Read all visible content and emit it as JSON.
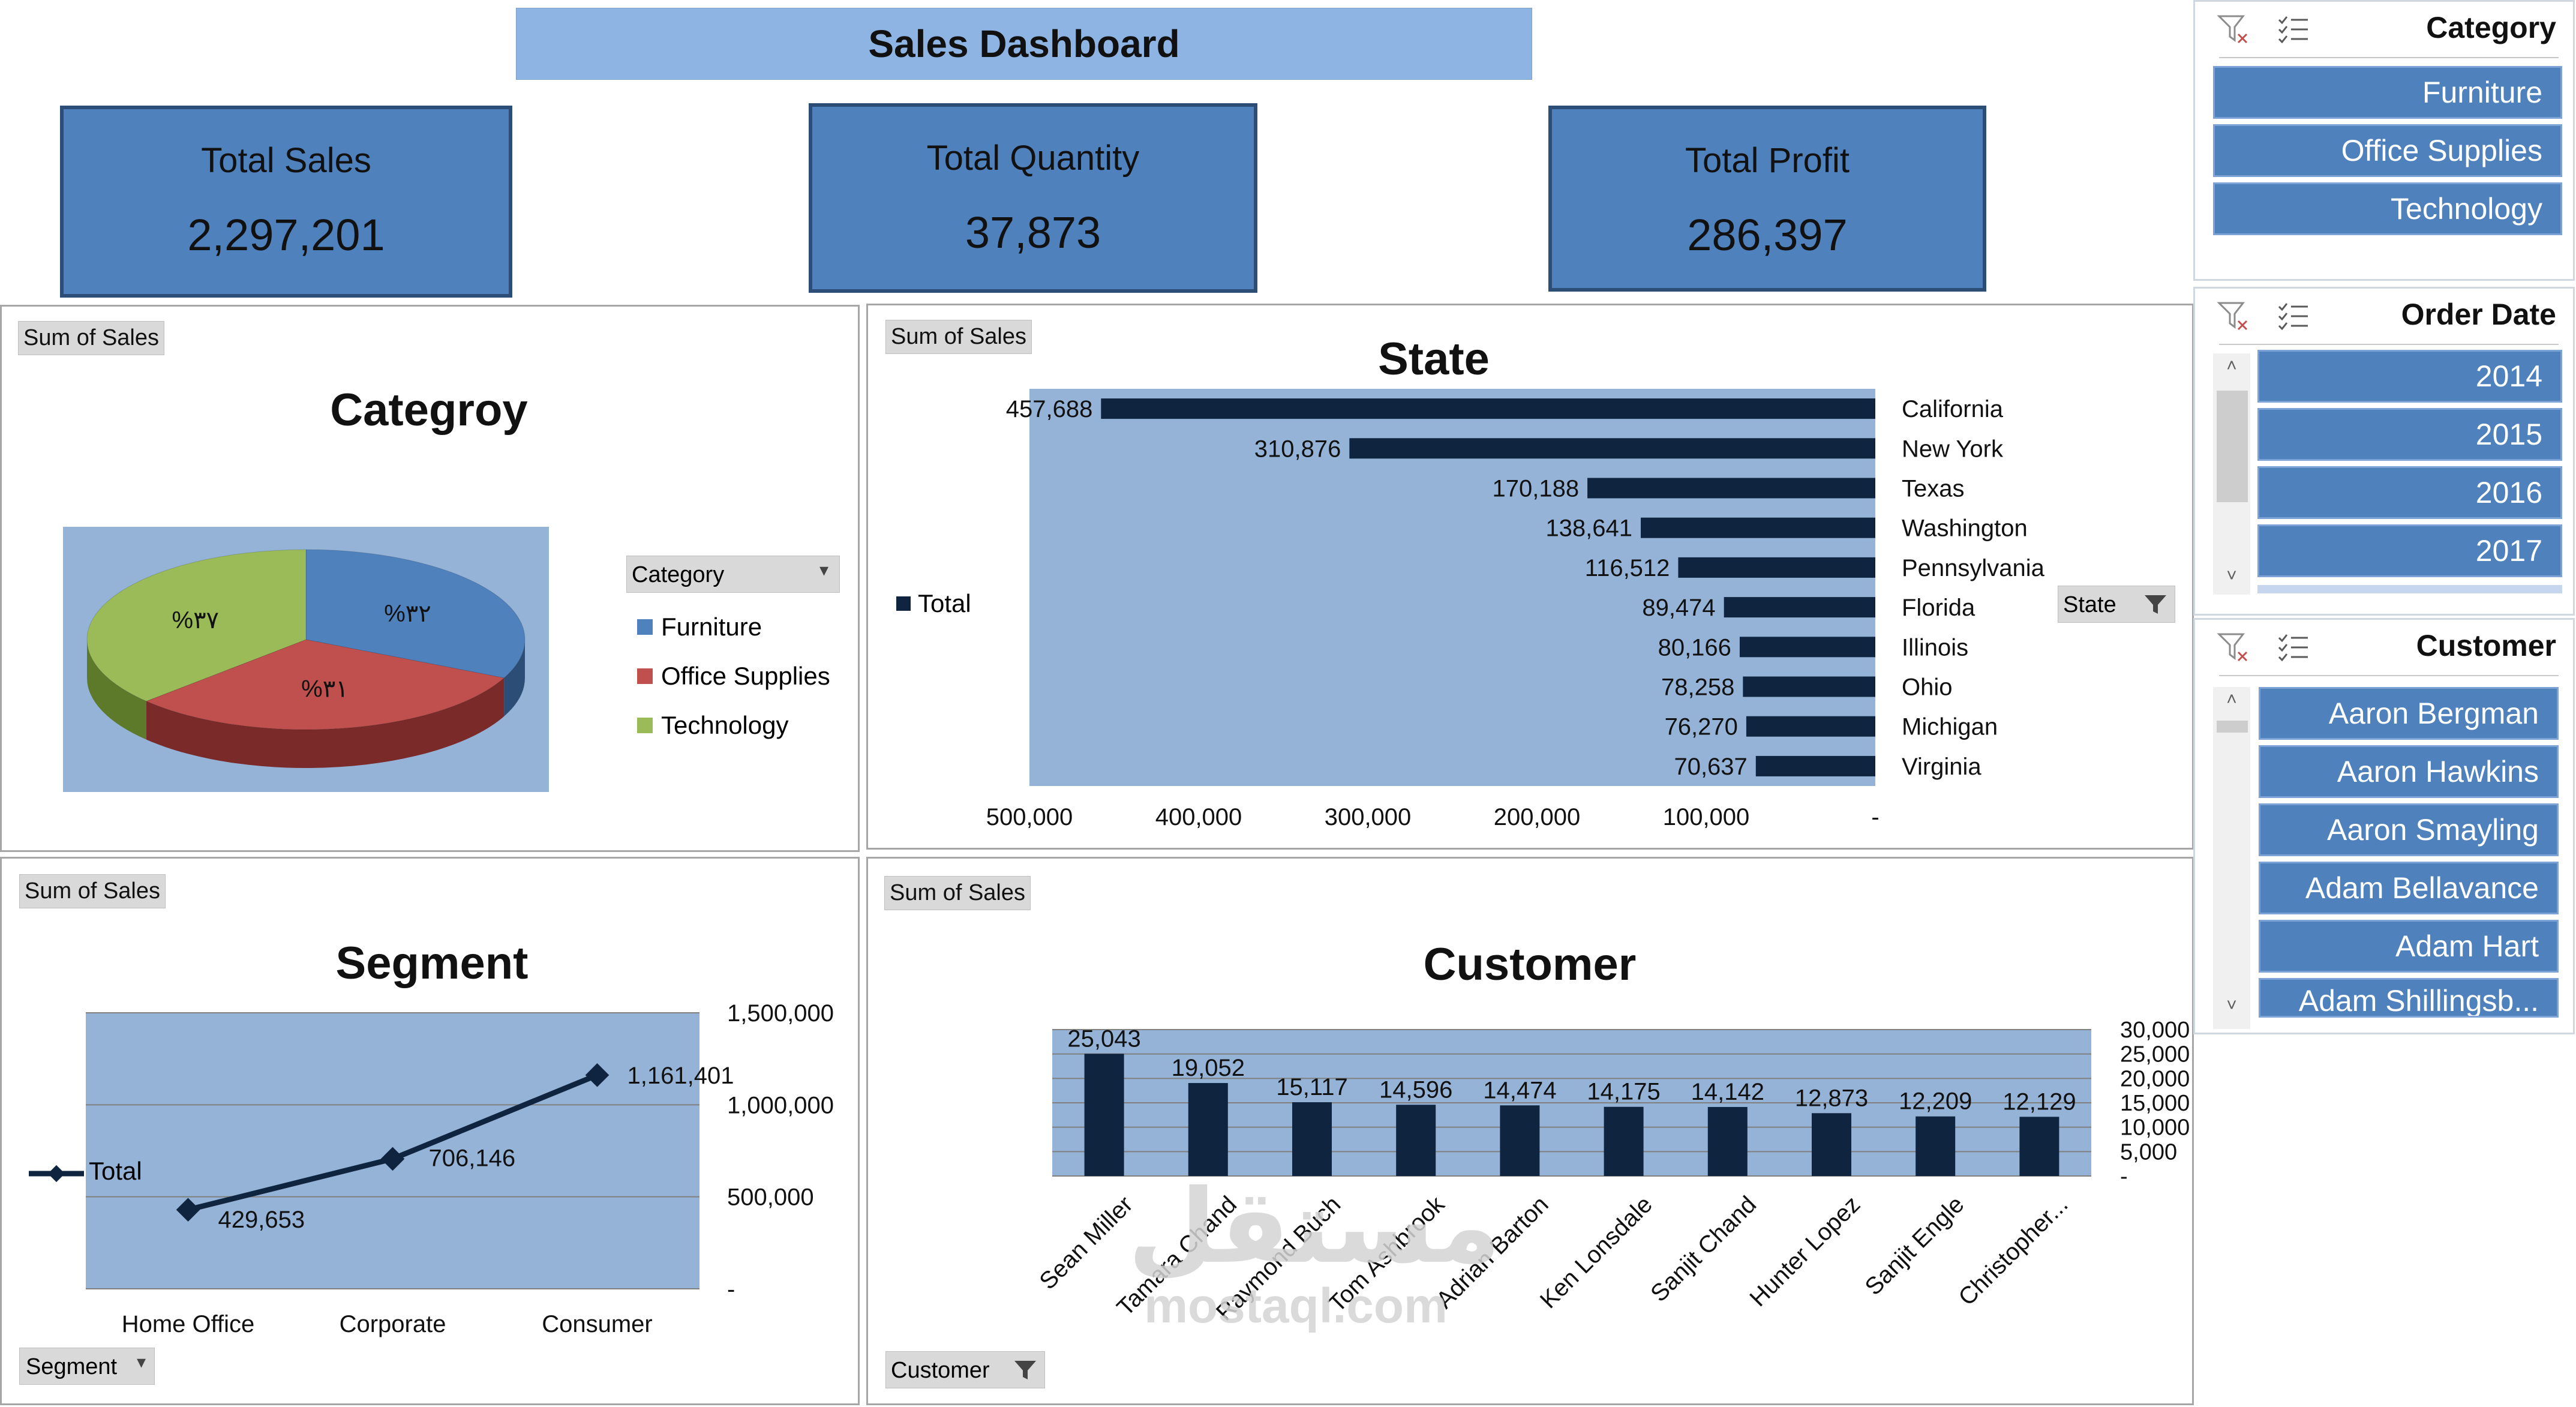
{
  "dashboard": {
    "title": "Sales Dashboard"
  },
  "kpis": [
    {
      "label": "Total Sales",
      "value": "2,297,201"
    },
    {
      "label": "Total Quantity",
      "value": "37,873"
    },
    {
      "label": "Total Profit",
      "value": "286,397"
    }
  ],
  "category_panel": {
    "field_button": "Sum of Sales",
    "title": "Categroy",
    "legend_filter": "Category",
    "legend_filter_icon": "dropdown-arrow"
  },
  "state_panel": {
    "field_button": "Sum of Sales",
    "title": "State",
    "legend_total": "Total",
    "filter_button": "State",
    "filter_icon": "funnel-icon"
  },
  "segment_panel": {
    "field_button": "Sum of Sales",
    "title": "Segment",
    "filter_button": "Segment",
    "legend_total": "Total"
  },
  "customer_panel": {
    "field_button": "Sum of Sales",
    "title": "Customer",
    "filter_button": "Customer",
    "filter_icon": "funnel-icon"
  },
  "colors": {
    "accent": "#4f81bd",
    "banner": "#8eb4e3",
    "plot_bg": "#95b3d7",
    "bar_dark": "#0f243e",
    "furniture": "#4f81bd",
    "office_supplies": "#c0504d",
    "technology": "#9bbb59"
  },
  "slicers": {
    "category": {
      "title": "Category",
      "icons": [
        "clear-filter-icon",
        "multi-select-icon"
      ],
      "items": [
        "Furniture",
        "Office Supplies",
        "Technology"
      ]
    },
    "order_date": {
      "title": "Order Date",
      "icons": [
        "clear-filter-icon",
        "multi-select-icon"
      ],
      "items": [
        "2014",
        "2015",
        "2016",
        "2017"
      ]
    },
    "customer": {
      "title": "Customer",
      "icons": [
        "clear-filter-icon",
        "multi-select-icon"
      ],
      "items": [
        "Aaron Bergman",
        "Aaron Hawkins",
        "Aaron Smayling",
        "Adam Bellavance",
        "Adam Hart",
        "Adam Shillingsb..."
      ]
    }
  },
  "watermark": {
    "arabic": "مستقل",
    "latin": "mostaql.com"
  },
  "chart_data": [
    {
      "type": "pie",
      "title": "Categroy",
      "categories": [
        "Furniture",
        "Office Supplies",
        "Technology"
      ],
      "values": [
        32,
        31,
        37
      ],
      "data_labels": [
        "%٣٢",
        "%٣١",
        "%٣٧"
      ],
      "legend": "right"
    },
    {
      "type": "bar",
      "orientation": "horizontal",
      "title": "State",
      "categories": [
        "California",
        "New York",
        "Texas",
        "Washington",
        "Pennsylvania",
        "Florida",
        "Illinois",
        "Ohio",
        "Michigan",
        "Virginia"
      ],
      "values": [
        457688,
        310876,
        170188,
        138641,
        116512,
        89474,
        80166,
        78258,
        76270,
        70637
      ],
      "data_labels": [
        "457,688",
        "310,876",
        "170,188",
        "138,641",
        "116,512",
        "89,474",
        "80,166",
        "78,258",
        "76,270",
        "70,637"
      ],
      "xlim": [
        0,
        500000
      ],
      "x_reversed": true,
      "x_ticks": [
        "500,000",
        "400,000",
        "300,000",
        "200,000",
        "100,000",
        "-"
      ],
      "series": [
        {
          "name": "Total"
        }
      ],
      "legend": "left"
    },
    {
      "type": "line",
      "title": "Segment",
      "categories": [
        "Home Office",
        "Corporate",
        "Consumer"
      ],
      "values": [
        429653,
        706146,
        1161401
      ],
      "data_labels": [
        "429,653",
        "706,146",
        "1,161,401"
      ],
      "ylim": [
        0,
        1500000
      ],
      "y_ticks": [
        "1,500,000",
        "1,000,000",
        "500,000",
        "-"
      ],
      "series": [
        {
          "name": "Total"
        }
      ],
      "legend": "left",
      "grid": true
    },
    {
      "type": "bar",
      "title": "Customer",
      "categories": [
        "Sean Miller",
        "Tamara Chand",
        "Raymond Buch",
        "Tom Ashbrook",
        "Adrian Barton",
        "Ken Lonsdale",
        "Sanjit Chand",
        "Hunter Lopez",
        "Sanjit Engle",
        "Christopher..."
      ],
      "values": [
        25043,
        19052,
        15117,
        14596,
        14474,
        14175,
        14142,
        12873,
        12209,
        12129
      ],
      "data_labels": [
        "25,043",
        "19,052",
        "15,117",
        "14,596",
        "14,474",
        "14,175",
        "14,142",
        "12,873",
        "12,209",
        "12,129"
      ],
      "ylim": [
        0,
        30000
      ],
      "y_ticks": [
        "30,000",
        "25,000",
        "20,000",
        "15,000",
        "10,000",
        "5,000",
        "-"
      ],
      "grid": true
    }
  ]
}
